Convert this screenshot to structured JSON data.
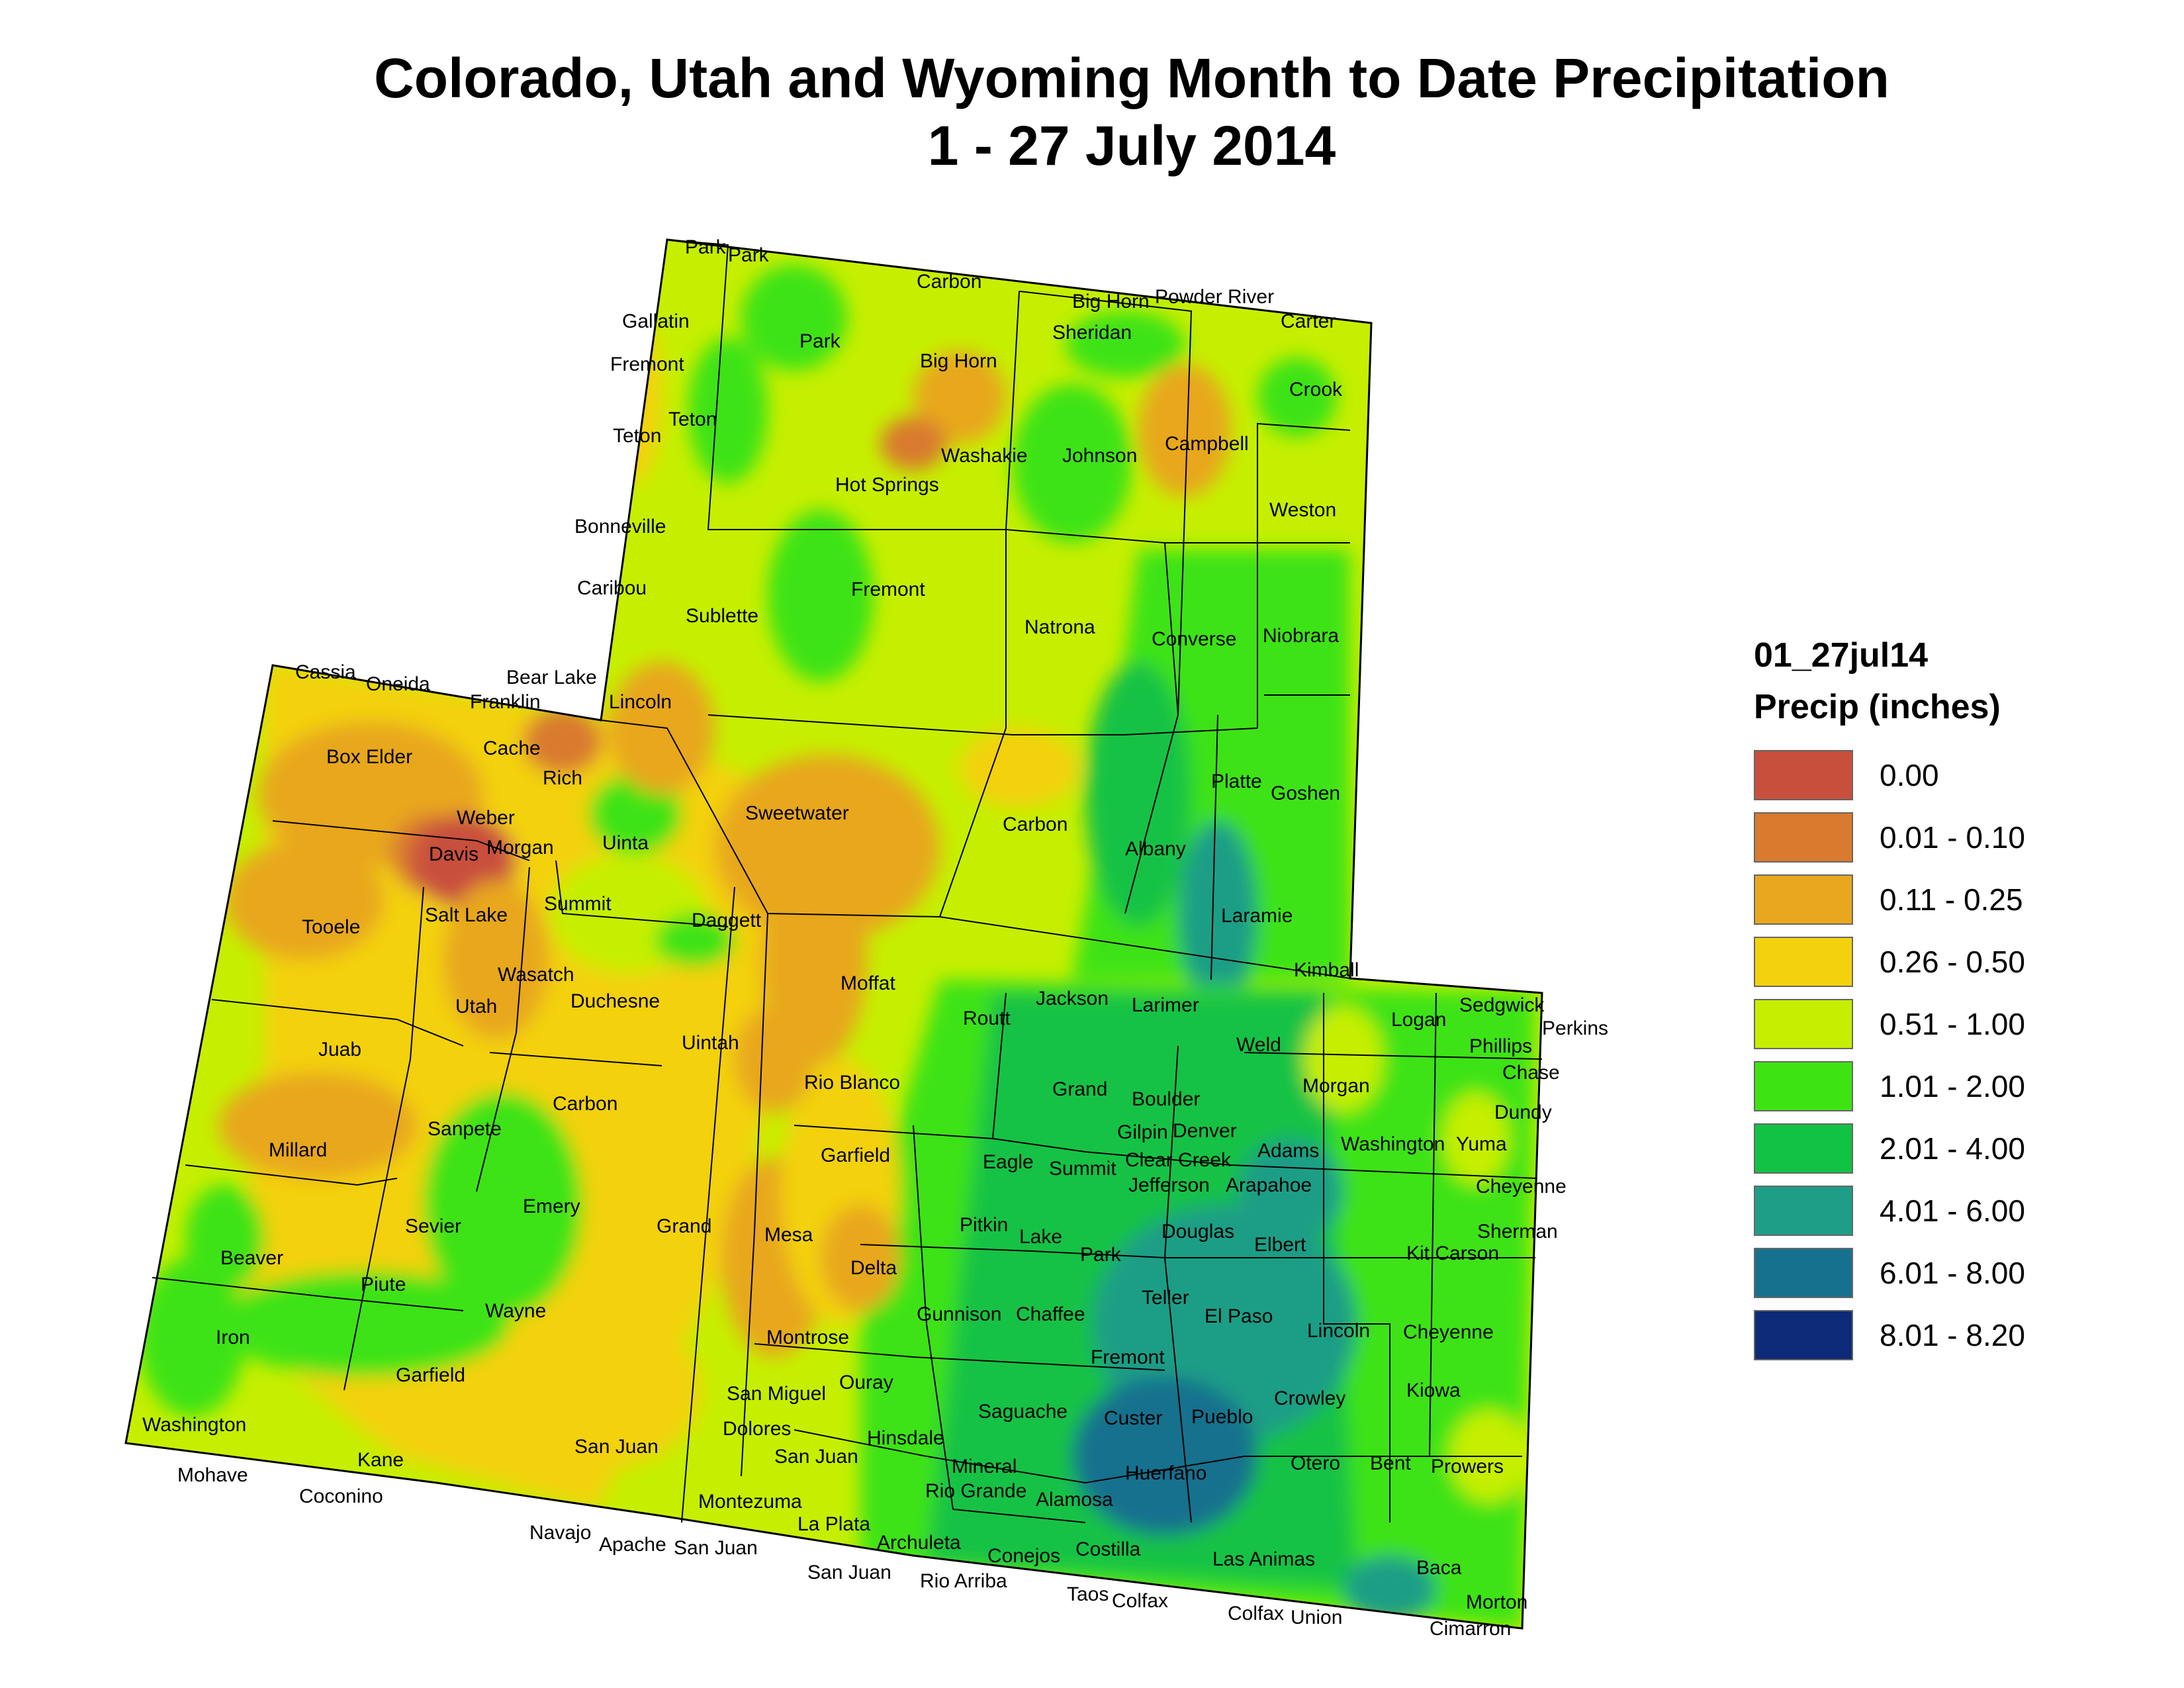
{
  "title": {
    "line1": "Colorado, Utah and Wyoming Month to Date Precipitation",
    "line2": "1 - 27 July 2014"
  },
  "legend": {
    "layer": "01_27jul14",
    "unit": "Precip (inches)",
    "classes": [
      {
        "label": "0.00",
        "color": "#c94f3d"
      },
      {
        "label": "0.01 - 0.10",
        "color": "#d97a2f"
      },
      {
        "label": "0.11 - 0.25",
        "color": "#e8a71f"
      },
      {
        "label": "0.26 - 0.50",
        "color": "#f3d10c"
      },
      {
        "label": "0.51 - 1.00",
        "color": "#c6ef00"
      },
      {
        "label": "1.01 - 2.00",
        "color": "#3ee312"
      },
      {
        "label": "2.01 - 4.00",
        "color": "#12c244"
      },
      {
        "label": "4.01 - 6.00",
        "color": "#1e9e86"
      },
      {
        "label": "6.01 - 8.00",
        "color": "#16718e"
      },
      {
        "label": "8.01 - 8.20",
        "color": "#0d2a78"
      }
    ]
  },
  "counties": {
    "wy": [
      "Park",
      "Park",
      "Carbon",
      "Big Horn",
      "Powder River",
      "Sheridan",
      "Carter",
      "Gallatin",
      "Fremont",
      "Park",
      "Big Horn",
      "Crook",
      "Teton",
      "Teton",
      "Washakie",
      "Johnson",
      "Campbell",
      "Hot Springs",
      "Weston",
      "Bonneville",
      "Caribou",
      "Fremont",
      "Sublette",
      "Natrona",
      "Converse",
      "Niobrara",
      "Lincoln",
      "Sweetwater",
      "Carbon",
      "Platte",
      "Goshen",
      "Uinta",
      "Albany",
      "Laramie"
    ],
    "ut": [
      "Cassia",
      "Oneida",
      "Bear Lake",
      "Franklin",
      "Box Elder",
      "Cache",
      "Rich",
      "Weber",
      "Davis",
      "Morgan",
      "Summit",
      "Salt Lake",
      "Tooele",
      "Wasatch",
      "Daggett",
      "Duchesne",
      "Utah",
      "Uintah",
      "Juab",
      "Sanpete",
      "Carbon",
      "Millard",
      "Emery",
      "Sevier",
      "Grand",
      "Beaver",
      "Piute",
      "Wayne",
      "Iron",
      "Garfield",
      "Washington",
      "Kane",
      "San Juan",
      "Mohave",
      "Coconino",
      "Navajo",
      "Apache"
    ],
    "co": [
      "Kimball",
      "Sedgwick",
      "Perkins",
      "Moffat",
      "Jackson",
      "Logan",
      "Routt",
      "Larimer",
      "Weld",
      "Phillips",
      "Chase",
      "Rio Blanco",
      "Grand",
      "Boulder",
      "Morgan",
      "Dundy",
      "Gilpin",
      "Denver",
      "Washington",
      "Yuma",
      "Garfield",
      "Eagle",
      "Summit",
      "Clear Creek",
      "Adams",
      "Jefferson",
      "Arapahoe",
      "Cheyenne",
      "Douglas",
      "Mesa",
      "Pitkin",
      "Lake",
      "Park",
      "Elbert",
      "Sherman",
      "Kit Carson",
      "Delta",
      "Teller",
      "Gunnison",
      "Chaffee",
      "El Paso",
      "Lincoln",
      "Cheyenne",
      "Montrose",
      "Fremont",
      "San Miguel",
      "Ouray",
      "Crowley",
      "Kiowa",
      "Saguache",
      "Custer",
      "Pueblo",
      "Dolores",
      "Hinsdale",
      "San Juan",
      "Mineral",
      "Otero",
      "Bent",
      "Prowers",
      "Huerfano",
      "Rio Grande",
      "Alamosa",
      "Montezuma",
      "La Plata",
      "Archuleta",
      "Conejos",
      "Costilla",
      "Las Animas",
      "Baca",
      "San Juan",
      "San Juan",
      "Rio Arriba",
      "Taos",
      "Colfax",
      "Colfax",
      "Union",
      "Morton",
      "Cimarron"
    ]
  }
}
